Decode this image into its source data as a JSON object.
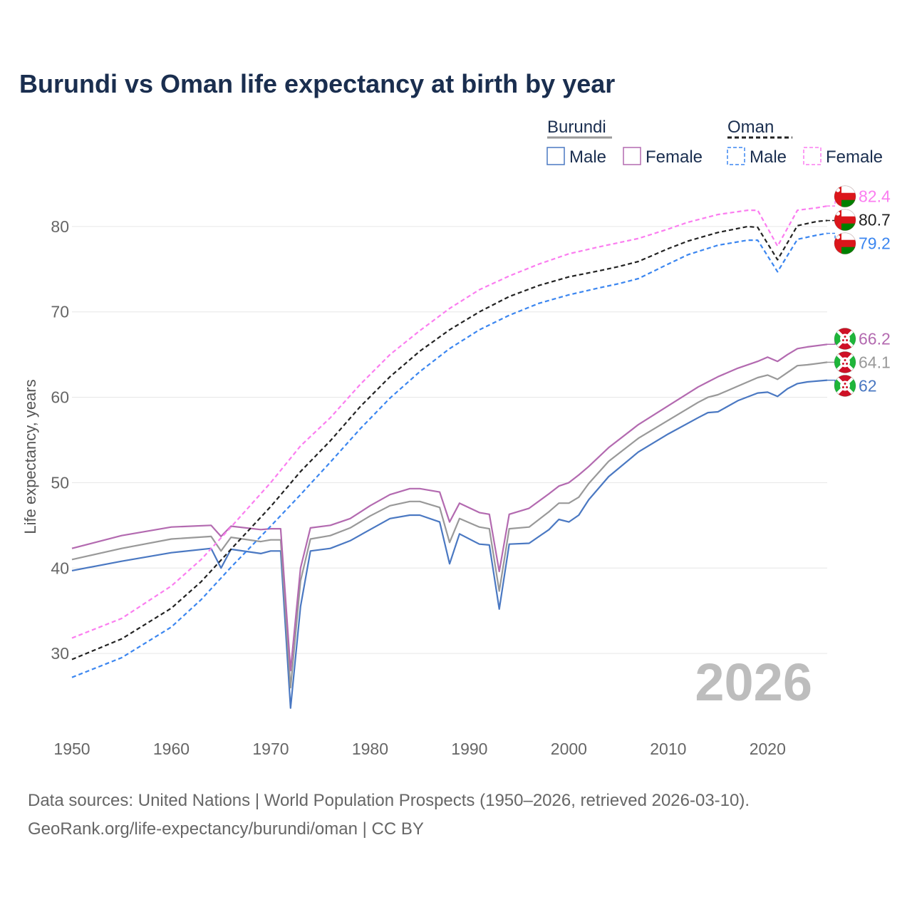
{
  "chart_data": {
    "type": "line",
    "title": "Burundi vs Oman life expectancy at birth by year",
    "ylabel": "Life expectancy, years",
    "xlabel": "",
    "xlim": [
      1950,
      2026
    ],
    "ylim": [
      22,
      88
    ],
    "x_ticks": [
      1950,
      1960,
      1970,
      1980,
      1990,
      2000,
      2010,
      2020
    ],
    "y_ticks": [
      30,
      40,
      50,
      60,
      70,
      80
    ],
    "year_watermark": "2026",
    "legend": {
      "groups": [
        {
          "name": "Burundi",
          "line_color": "#999999",
          "dashed": false,
          "items": [
            {
              "label": "Male",
              "color": "#4a78c2"
            },
            {
              "label": "Female",
              "color": "#b36ab0"
            }
          ]
        },
        {
          "name": "Oman",
          "line_color": "#222222",
          "dashed": true,
          "items": [
            {
              "label": "Male",
              "color": "#3b86f0"
            },
            {
              "label": "Female",
              "color": "#fb7df0"
            }
          ]
        }
      ]
    },
    "series": [
      {
        "name": "Burundi Male",
        "country": "burundi",
        "color": "#4a78c2",
        "dashed": false,
        "end_label": "62",
        "points": [
          [
            1950,
            39.7
          ],
          [
            1955,
            40.8
          ],
          [
            1960,
            41.8
          ],
          [
            1964,
            42.3
          ],
          [
            1965,
            40.0
          ],
          [
            1966,
            42.2
          ],
          [
            1969,
            41.7
          ],
          [
            1970,
            42.0
          ],
          [
            1971,
            42.0
          ],
          [
            1972,
            23.6
          ],
          [
            1973,
            35.5
          ],
          [
            1974,
            42.0
          ],
          [
            1976,
            42.3
          ],
          [
            1978,
            43.2
          ],
          [
            1980,
            44.5
          ],
          [
            1982,
            45.8
          ],
          [
            1984,
            46.2
          ],
          [
            1985,
            46.2
          ],
          [
            1987,
            45.4
          ],
          [
            1988,
            40.5
          ],
          [
            1989,
            44.0
          ],
          [
            1991,
            42.8
          ],
          [
            1992,
            42.7
          ],
          [
            1993,
            35.2
          ],
          [
            1994,
            42.8
          ],
          [
            1996,
            42.9
          ],
          [
            1998,
            44.5
          ],
          [
            1999,
            45.7
          ],
          [
            2000,
            45.4
          ],
          [
            2001,
            46.2
          ],
          [
            2002,
            48.0
          ],
          [
            2004,
            50.7
          ],
          [
            2007,
            53.6
          ],
          [
            2010,
            55.7
          ],
          [
            2013,
            57.6
          ],
          [
            2014,
            58.2
          ],
          [
            2015,
            58.3
          ],
          [
            2017,
            59.6
          ],
          [
            2019,
            60.5
          ],
          [
            2020,
            60.6
          ],
          [
            2021,
            60.1
          ],
          [
            2022,
            61.0
          ],
          [
            2023,
            61.6
          ],
          [
            2024,
            61.8
          ],
          [
            2026,
            62.0
          ]
        ]
      },
      {
        "name": "Burundi Total",
        "country": "burundi",
        "color": "#999999",
        "dashed": false,
        "end_label": "64.1",
        "points": [
          [
            1950,
            41.0
          ],
          [
            1955,
            42.3
          ],
          [
            1960,
            43.4
          ],
          [
            1964,
            43.7
          ],
          [
            1965,
            42.0
          ],
          [
            1966,
            43.6
          ],
          [
            1969,
            43.1
          ],
          [
            1970,
            43.3
          ],
          [
            1971,
            43.3
          ],
          [
            1972,
            26.0
          ],
          [
            1973,
            38.5
          ],
          [
            1974,
            43.4
          ],
          [
            1976,
            43.8
          ],
          [
            1978,
            44.7
          ],
          [
            1980,
            46.1
          ],
          [
            1982,
            47.3
          ],
          [
            1984,
            47.8
          ],
          [
            1985,
            47.8
          ],
          [
            1987,
            47.1
          ],
          [
            1988,
            43.0
          ],
          [
            1989,
            45.8
          ],
          [
            1991,
            44.8
          ],
          [
            1992,
            44.6
          ],
          [
            1993,
            37.3
          ],
          [
            1994,
            44.6
          ],
          [
            1996,
            44.8
          ],
          [
            1998,
            46.6
          ],
          [
            1999,
            47.6
          ],
          [
            2000,
            47.6
          ],
          [
            2001,
            48.3
          ],
          [
            2002,
            49.9
          ],
          [
            2004,
            52.5
          ],
          [
            2007,
            55.2
          ],
          [
            2010,
            57.3
          ],
          [
            2013,
            59.4
          ],
          [
            2014,
            60.0
          ],
          [
            2015,
            60.3
          ],
          [
            2017,
            61.3
          ],
          [
            2019,
            62.3
          ],
          [
            2020,
            62.6
          ],
          [
            2021,
            62.1
          ],
          [
            2022,
            62.9
          ],
          [
            2023,
            63.7
          ],
          [
            2024,
            63.8
          ],
          [
            2026,
            64.1
          ]
        ]
      },
      {
        "name": "Burundi Female",
        "country": "burundi",
        "color": "#b36ab0",
        "dashed": false,
        "end_label": "66.2",
        "points": [
          [
            1950,
            42.3
          ],
          [
            1955,
            43.8
          ],
          [
            1960,
            44.8
          ],
          [
            1964,
            45.0
          ],
          [
            1965,
            43.7
          ],
          [
            1966,
            44.9
          ],
          [
            1969,
            44.5
          ],
          [
            1970,
            44.6
          ],
          [
            1971,
            44.6
          ],
          [
            1972,
            28.0
          ],
          [
            1973,
            40.0
          ],
          [
            1974,
            44.7
          ],
          [
            1976,
            45.0
          ],
          [
            1978,
            45.8
          ],
          [
            1980,
            47.3
          ],
          [
            1982,
            48.6
          ],
          [
            1984,
            49.3
          ],
          [
            1985,
            49.3
          ],
          [
            1987,
            48.9
          ],
          [
            1988,
            45.4
          ],
          [
            1989,
            47.6
          ],
          [
            1991,
            46.5
          ],
          [
            1992,
            46.3
          ],
          [
            1993,
            39.6
          ],
          [
            1994,
            46.3
          ],
          [
            1996,
            47.0
          ],
          [
            1998,
            48.7
          ],
          [
            1999,
            49.6
          ],
          [
            2000,
            50.0
          ],
          [
            2001,
            50.9
          ],
          [
            2002,
            51.9
          ],
          [
            2004,
            54.1
          ],
          [
            2007,
            56.8
          ],
          [
            2010,
            59.0
          ],
          [
            2013,
            61.2
          ],
          [
            2014,
            61.8
          ],
          [
            2015,
            62.4
          ],
          [
            2017,
            63.4
          ],
          [
            2019,
            64.2
          ],
          [
            2020,
            64.7
          ],
          [
            2021,
            64.2
          ],
          [
            2022,
            65.0
          ],
          [
            2023,
            65.7
          ],
          [
            2024,
            65.9
          ],
          [
            2026,
            66.2
          ]
        ]
      },
      {
        "name": "Oman Female",
        "country": "oman",
        "color": "#fb7df0",
        "dashed": true,
        "end_label": "82.4",
        "points": [
          [
            1950,
            31.8
          ],
          [
            1955,
            34.1
          ],
          [
            1960,
            37.9
          ],
          [
            1963,
            41.0
          ],
          [
            1966,
            44.8
          ],
          [
            1970,
            50.0
          ],
          [
            1973,
            54.3
          ],
          [
            1976,
            57.6
          ],
          [
            1979,
            61.5
          ],
          [
            1982,
            65.0
          ],
          [
            1985,
            67.8
          ],
          [
            1988,
            70.4
          ],
          [
            1991,
            72.6
          ],
          [
            1994,
            74.2
          ],
          [
            1997,
            75.6
          ],
          [
            2000,
            76.8
          ],
          [
            2003,
            77.6
          ],
          [
            2005,
            78.1
          ],
          [
            2007,
            78.6
          ],
          [
            2010,
            79.7
          ],
          [
            2012,
            80.5
          ],
          [
            2015,
            81.4
          ],
          [
            2018,
            81.9
          ],
          [
            2019,
            81.9
          ],
          [
            2021,
            77.7
          ],
          [
            2023,
            81.9
          ],
          [
            2025,
            82.2
          ],
          [
            2026,
            82.4
          ]
        ]
      },
      {
        "name": "Oman Total",
        "country": "oman",
        "color": "#222222",
        "dashed": true,
        "end_label": "80.7",
        "points": [
          [
            1950,
            29.3
          ],
          [
            1955,
            31.7
          ],
          [
            1960,
            35.3
          ],
          [
            1963,
            38.4
          ],
          [
            1966,
            42.2
          ],
          [
            1970,
            47.2
          ],
          [
            1973,
            51.3
          ],
          [
            1976,
            54.9
          ],
          [
            1979,
            58.9
          ],
          [
            1982,
            62.4
          ],
          [
            1985,
            65.4
          ],
          [
            1988,
            67.9
          ],
          [
            1991,
            70.0
          ],
          [
            1994,
            71.8
          ],
          [
            1997,
            73.1
          ],
          [
            2000,
            74.1
          ],
          [
            2003,
            74.8
          ],
          [
            2005,
            75.3
          ],
          [
            2007,
            75.9
          ],
          [
            2010,
            77.4
          ],
          [
            2012,
            78.3
          ],
          [
            2015,
            79.3
          ],
          [
            2018,
            80.0
          ],
          [
            2019,
            79.9
          ],
          [
            2021,
            76.1
          ],
          [
            2023,
            80.1
          ],
          [
            2025,
            80.6
          ],
          [
            2026,
            80.7
          ]
        ]
      },
      {
        "name": "Oman Male",
        "country": "oman",
        "color": "#3b86f0",
        "dashed": true,
        "end_label": "79.2",
        "points": [
          [
            1950,
            27.2
          ],
          [
            1955,
            29.5
          ],
          [
            1960,
            33.1
          ],
          [
            1963,
            36.3
          ],
          [
            1966,
            40.1
          ],
          [
            1970,
            44.9
          ],
          [
            1973,
            48.6
          ],
          [
            1976,
            52.4
          ],
          [
            1979,
            56.3
          ],
          [
            1982,
            59.9
          ],
          [
            1985,
            63.0
          ],
          [
            1988,
            65.7
          ],
          [
            1991,
            67.9
          ],
          [
            1994,
            69.6
          ],
          [
            1997,
            71.0
          ],
          [
            2000,
            72.0
          ],
          [
            2003,
            72.8
          ],
          [
            2005,
            73.3
          ],
          [
            2007,
            73.9
          ],
          [
            2010,
            75.6
          ],
          [
            2012,
            76.7
          ],
          [
            2015,
            77.8
          ],
          [
            2018,
            78.4
          ],
          [
            2019,
            78.4
          ],
          [
            2021,
            74.7
          ],
          [
            2023,
            78.5
          ],
          [
            2025,
            79.0
          ],
          [
            2026,
            79.2
          ]
        ]
      }
    ]
  },
  "source": {
    "line1": "Data sources: United Nations | World Population Prospects (1950–2026, retrieved 2026-03-10).",
    "line2": "GeoRank.org/life-expectancy/burundi/oman | CC BY"
  }
}
